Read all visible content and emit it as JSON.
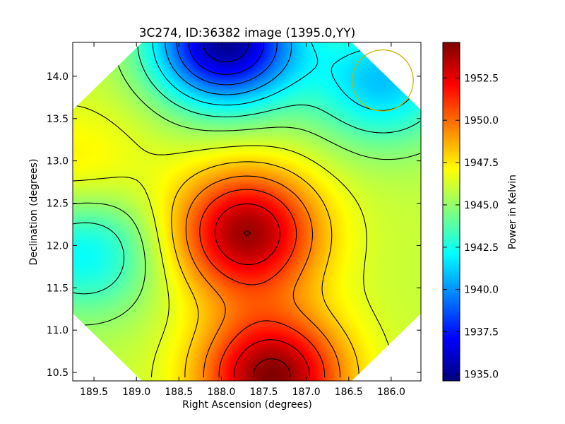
{
  "chart_data": {
    "type": "heatmap",
    "title": "3C274, ID:36382 image (1395.0,YY)",
    "xlabel": "Right Ascension (degrees)",
    "ylabel": "Declination (degrees)",
    "colorbar_label": "Power in Kelvin",
    "xlim": [
      189.75,
      185.65
    ],
    "ylim": [
      10.4,
      14.4
    ],
    "xticks": [
      189.5,
      189.0,
      188.5,
      188.0,
      187.5,
      187.0,
      186.5,
      186.0
    ],
    "xtick_labels": [
      "189.5",
      "189.0",
      "188.5",
      "188.0",
      "187.5",
      "187.0",
      "186.5",
      "186.0"
    ],
    "yticks": [
      10.5,
      11.0,
      11.5,
      12.0,
      12.5,
      13.0,
      13.5,
      14.0
    ],
    "ytick_labels": [
      "10.5",
      "11.0",
      "11.5",
      "12.0",
      "12.5",
      "13.0",
      "13.5",
      "14.0"
    ],
    "colorbar_range": [
      1934.6,
      1954.6
    ],
    "colorbar_ticks": [
      1935.0,
      1937.5,
      1940.0,
      1942.5,
      1945.0,
      1947.5,
      1950.0,
      1952.5
    ],
    "colorbar_tick_labels": [
      "1935.0",
      "1937.5",
      "1940.0",
      "1942.5",
      "1945.0",
      "1947.5",
      "1950.0",
      "1952.5"
    ],
    "colormap": "jet",
    "contour_color": "#000000",
    "marker": {
      "shape": "circle",
      "center_ra": 186.1,
      "center_dec": 13.95,
      "radius_deg": 0.36,
      "color": "#c8b400"
    },
    "field_shape": "octagon",
    "features": [
      {
        "kind": "minimum",
        "ra": 187.95,
        "dec": 14.4,
        "value": 1935.0
      },
      {
        "kind": "minimum",
        "ra": 189.6,
        "dec": 11.95,
        "value": 1941.8
      },
      {
        "kind": "maximum",
        "ra": 187.7,
        "dec": 12.15,
        "value": 1954.0
      },
      {
        "kind": "maximum",
        "ra": 187.4,
        "dec": 10.45,
        "value": 1954.5
      },
      {
        "kind": "local",
        "ra": 189.7,
        "dec": 12.85,
        "value": 1947.8
      },
      {
        "kind": "local",
        "ra": 186.1,
        "dec": 13.95,
        "value": 1941.0
      }
    ],
    "grid": false
  }
}
